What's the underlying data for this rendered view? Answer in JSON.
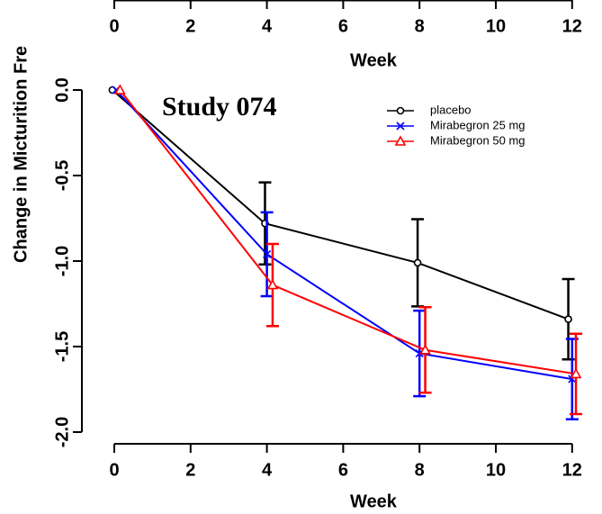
{
  "chart_data": [
    {
      "type": "axis",
      "xlabel": "Week",
      "xlim": [
        -0.4,
        12.4
      ],
      "xticks": [
        0,
        2,
        4,
        6,
        8,
        10,
        12
      ],
      "series": []
    },
    {
      "type": "line",
      "annotation": "Study 074",
      "xlabel": "Week",
      "ylabel": "Change in Micturition Fre",
      "xlim": [
        -0.4,
        12.4
      ],
      "xticks": [
        0,
        2,
        4,
        6,
        8,
        10,
        12
      ],
      "ylim": [
        -2.07,
        0.05
      ],
      "yticks": [
        {
          "value": 0,
          "label": "0.0"
        },
        {
          "value": -0.5,
          "label": "-0.5"
        },
        {
          "value": -1,
          "label": "-1.0"
        },
        {
          "value": -1.5,
          "label": "-1.5"
        },
        {
          "value": -2,
          "label": "-2.0"
        }
      ],
      "legend": "top-right",
      "series": [
        {
          "name": "placebo",
          "color": "#000000",
          "marker": "circle",
          "x": [
            -0.05,
            3.95,
            7.95,
            11.9
          ],
          "values": [
            0,
            -0.78,
            -1.01,
            -1.34
          ],
          "errors": [
            0,
            0.24,
            0.255,
            0.235
          ]
        },
        {
          "name": "Mirabegron 25 mg",
          "color": "#0000ff",
          "marker": "cross",
          "x": [
            0.05,
            4.0,
            8.0,
            12.0
          ],
          "values": [
            0,
            -0.96,
            -1.54,
            -1.69
          ],
          "errors": [
            0,
            0.245,
            0.25,
            0.235
          ]
        },
        {
          "name": "Mirabegron 50 mg",
          "color": "#ff0000",
          "marker": "triangle",
          "x": [
            0.15,
            4.15,
            8.15,
            12.1
          ],
          "values": [
            0,
            -1.14,
            -1.52,
            -1.66
          ],
          "errors": [
            0,
            0.24,
            0.25,
            0.235
          ]
        }
      ]
    }
  ]
}
